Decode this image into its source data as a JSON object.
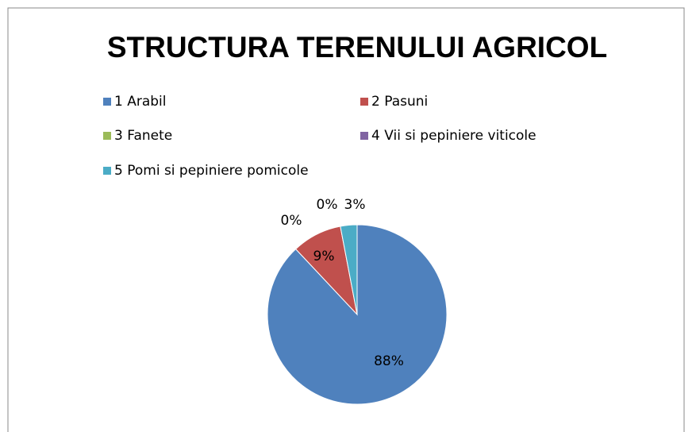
{
  "chart_data": {
    "type": "pie",
    "title": "STRUCTURA TERENULUI AGRICOL",
    "categories": [
      "1 Arabil",
      "2 Pasuni",
      "3 Fanete",
      "4 Vii si pepiniere viticole",
      "5 Pomi si pepiniere pomicole"
    ],
    "values": [
      88,
      9,
      0,
      0,
      3
    ],
    "value_labels": [
      "88%",
      "9%",
      "0%",
      "0%",
      "3%"
    ],
    "colors": [
      "#4f81bd",
      "#c0504d",
      "#9bbb59",
      "#8064a2",
      "#4bacc6"
    ],
    "legend": "top"
  }
}
